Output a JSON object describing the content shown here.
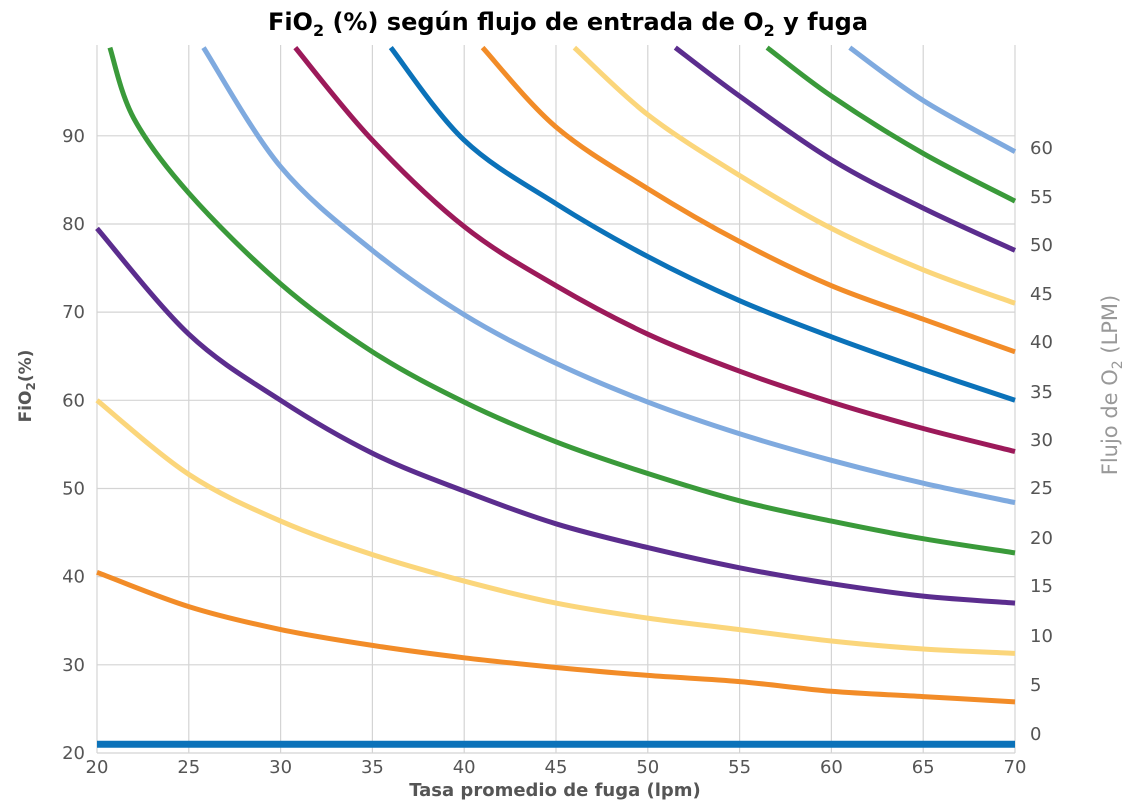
{
  "chart_data": {
    "type": "line",
    "title": {
      "prefix": "FiO",
      "sub": "2",
      "mid": " (%) según flujo de entrada de O",
      "sub2": "2",
      "suffix": " y fuga"
    },
    "xlabel": "Tasa promedio de fuga (lpm)",
    "ylabel": {
      "prefix": "FiO",
      "sub": "2",
      "suffix": "(%)"
    },
    "y2label": {
      "prefix": "Flujo de O",
      "sub": "2",
      "suffix": " (LPM)"
    },
    "xlim": [
      20,
      70
    ],
    "ylim": [
      20,
      100
    ],
    "x_ticks": [
      "20",
      "25",
      "30",
      "35",
      "40",
      "45",
      "50",
      "55",
      "60",
      "65",
      "70"
    ],
    "y_ticks": [
      "20",
      "30",
      "40",
      "50",
      "60",
      "70",
      "80",
      "90"
    ],
    "grid": true,
    "series": [
      {
        "name": "0",
        "color": "#0b72b9",
        "x": [
          20,
          70
        ],
        "y": [
          21,
          21
        ],
        "thick": true
      },
      {
        "name": "5",
        "color": "#f28c28",
        "x": [
          20,
          25,
          30,
          35,
          40,
          45,
          50,
          55,
          60,
          65,
          70
        ],
        "y": [
          40.5,
          36.6,
          34.0,
          32.2,
          30.8,
          29.7,
          28.8,
          28.1,
          27.0,
          26.4,
          25.8
        ]
      },
      {
        "name": "10",
        "color": "#fbd67b",
        "x": [
          20,
          25,
          30,
          35,
          40,
          45,
          50,
          55,
          60,
          65,
          70
        ],
        "y": [
          60,
          51.6,
          46.3,
          42.5,
          39.5,
          37.0,
          35.3,
          34.0,
          32.7,
          31.8,
          31.3
        ]
      },
      {
        "name": "15",
        "color": "#5b2d8e",
        "x": [
          20,
          25,
          30,
          35,
          40,
          45,
          50,
          55,
          60,
          65,
          70
        ],
        "y": [
          79.5,
          67.5,
          60.0,
          54.0,
          49.7,
          46.0,
          43.3,
          41.0,
          39.2,
          37.8,
          37.0
        ]
      },
      {
        "name": "20",
        "color": "#3a9a3a",
        "x": [
          20.7,
          22,
          25,
          30,
          35,
          40,
          45,
          50,
          55,
          60,
          65,
          70
        ],
        "y": [
          100,
          92,
          83.5,
          73.2,
          65.5,
          59.8,
          55.3,
          51.7,
          48.6,
          46.3,
          44.3,
          42.7
        ]
      },
      {
        "name": "25",
        "color": "#7faadf",
        "x": [
          25.8,
          30,
          35,
          40,
          45,
          50,
          55,
          60,
          65,
          70
        ],
        "y": [
          100,
          86.5,
          77.0,
          69.7,
          64.2,
          59.8,
          56.2,
          53.2,
          50.6,
          48.4
        ]
      },
      {
        "name": "30",
        "color": "#9c1a5a",
        "x": [
          30.8,
          35,
          40,
          45,
          50,
          55,
          60,
          65,
          70
        ],
        "y": [
          100,
          89.5,
          79.7,
          73.0,
          67.5,
          63.3,
          59.8,
          56.8,
          54.2
        ]
      },
      {
        "name": "35",
        "color": "#0b72b9",
        "x": [
          36,
          40,
          45,
          50,
          55,
          60,
          65,
          70
        ],
        "y": [
          100,
          89.5,
          82.3,
          76.3,
          71.3,
          67.2,
          63.5,
          60.0
        ]
      },
      {
        "name": "40",
        "color": "#f28c28",
        "x": [
          41,
          45,
          50,
          55,
          60,
          65,
          70
        ],
        "y": [
          100,
          91.0,
          84.0,
          78.0,
          73.0,
          69.2,
          65.5
        ]
      },
      {
        "name": "45",
        "color": "#fbd67b",
        "x": [
          46,
          50,
          55,
          60,
          65,
          70
        ],
        "y": [
          100,
          92.4,
          85.5,
          79.5,
          74.8,
          71.0
        ]
      },
      {
        "name": "50",
        "color": "#5b2d8e",
        "x": [
          51.5,
          55,
          60,
          65,
          70
        ],
        "y": [
          100,
          94.5,
          87.3,
          81.8,
          77.0
        ]
      },
      {
        "name": "55",
        "color": "#3a9a3a",
        "x": [
          56.5,
          60,
          65,
          70
        ],
        "y": [
          100,
          94.5,
          88.0,
          82.6
        ]
      },
      {
        "name": "60",
        "color": "#7faadf",
        "x": [
          61,
          65,
          70
        ],
        "y": [
          100,
          94.0,
          88.2
        ]
      }
    ],
    "y2_ticks": [
      "0",
      "5",
      "10",
      "15",
      "20",
      "25",
      "30",
      "35",
      "40",
      "45",
      "50",
      "55",
      "60"
    ]
  }
}
